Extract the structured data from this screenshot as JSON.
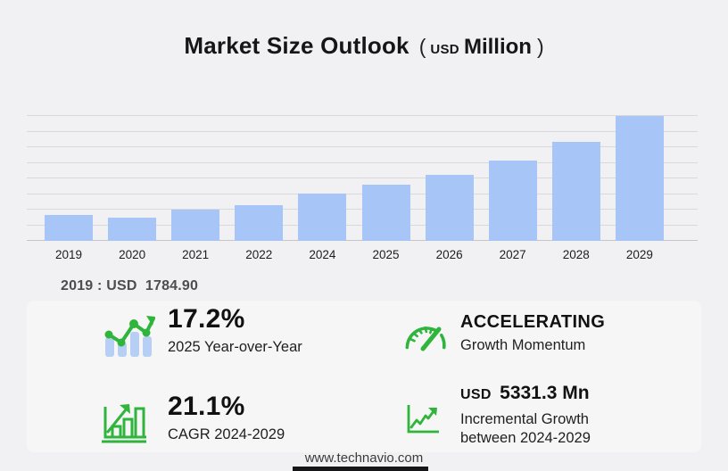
{
  "title": {
    "main": "Market Size Outlook",
    "open_paren": "(",
    "currency": "USD",
    "unit": "Million",
    "close_paren": ")"
  },
  "chart_data": {
    "type": "bar",
    "title": "Market Size Outlook (USD Million)",
    "unit": "USD Million",
    "categories": [
      "2019",
      "2020",
      "2021",
      "2022",
      "2024",
      "2025",
      "2026",
      "2027",
      "2028",
      "2029"
    ],
    "values": [
      1784.9,
      1610,
      2155,
      2460,
      3290,
      3855,
      4560,
      5540,
      6830,
      8620
    ],
    "annotation": "2019 : USD  1784.90",
    "ylim": [
      0,
      8900
    ],
    "grid": true,
    "legend": false,
    "bar_color": "#a8c5f7",
    "gridline_color": "#d9d9db"
  },
  "stats": {
    "yoy": {
      "icon": "trend-bar-chart-icon",
      "value": "17.2%",
      "label": "2025 Year-over-Year"
    },
    "momentum": {
      "icon": "speedometer-icon",
      "value": "ACCELERATING",
      "label": "Growth Momentum"
    },
    "cagr": {
      "icon": "growth-bars-icon",
      "value": "21.1%",
      "label": "CAGR 2024-2029"
    },
    "incremental": {
      "icon": "line-chart-icon",
      "currency": "USD",
      "value": "5331.3 Mn",
      "label_line1": "Incremental Growth",
      "label_line2": "between 2024-2029"
    }
  },
  "footer": {
    "website": "www.technavio.com"
  },
  "colors": {
    "background": "#f1f1f3",
    "panel": "#f6f6f7",
    "bar_blue": "#a8c5f7",
    "icon_bar_blue": "#b7cff4",
    "accent_green": "#2fb43c",
    "grid": "#d9d9db",
    "text_dark": "#161616",
    "text_muted": "#4d4d4d"
  }
}
